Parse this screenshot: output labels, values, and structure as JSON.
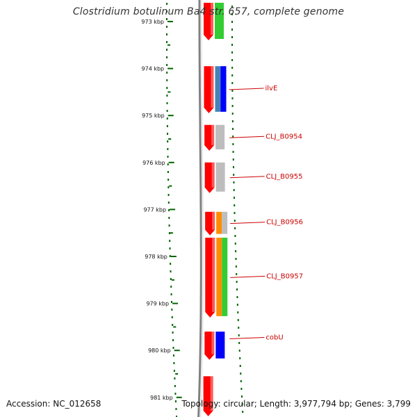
{
  "title": "Clostridium botulinum Ba4 str. 657, complete genome",
  "footer": {
    "accession": "Accession: NC_012658",
    "summary": "Topology: circular; Length: 3,977,794 bp; Genes: 3,799"
  },
  "colors": {
    "cds": "#ff0000",
    "blue": "#0000ff",
    "grey": "#bdbdbd",
    "green": "#33cc33",
    "orange": "#ff8c00",
    "steel": "#4682b4",
    "scale": "#006400",
    "backbone": "#808080",
    "label": "#cc0000"
  },
  "scale_ticks": [
    {
      "label": "973 kbp",
      "value": 973
    },
    {
      "label": "974 kbp",
      "value": 974
    },
    {
      "label": "975 kbp",
      "value": 975
    },
    {
      "label": "976 kbp",
      "value": 976
    },
    {
      "label": "977 kbp",
      "value": 977
    },
    {
      "label": "978 kbp",
      "value": 978
    },
    {
      "label": "979 kbp",
      "value": 979
    },
    {
      "label": "980 kbp",
      "value": 980
    },
    {
      "label": "981 kbp",
      "value": 981
    }
  ],
  "genes": [
    {
      "name": "",
      "start": 972.6,
      "end": 973.4,
      "extra_colors": [
        "green"
      ]
    },
    {
      "name": "ilvE",
      "start": 973.95,
      "end": 974.95,
      "extra_colors": [
        "steel",
        "blue"
      ]
    },
    {
      "name": "CLJ_B0954",
      "start": 975.2,
      "end": 975.75,
      "extra_colors": [
        "grey"
      ]
    },
    {
      "name": "CLJ_B0955",
      "start": 976.0,
      "end": 976.65,
      "extra_colors": [
        "grey"
      ]
    },
    {
      "name": "CLJ_B0956",
      "start": 977.05,
      "end": 977.55,
      "extra_colors": [
        "orange",
        "grey"
      ]
    },
    {
      "name": "CLJ_B0957",
      "start": 977.6,
      "end": 979.3,
      "extra_colors": [
        "orange",
        "green"
      ]
    },
    {
      "name": "cobU",
      "start": 979.6,
      "end": 980.2,
      "extra_colors": [
        "blue"
      ]
    },
    {
      "name": "",
      "start": 980.55,
      "end": 981.4,
      "extra_colors": []
    }
  ]
}
